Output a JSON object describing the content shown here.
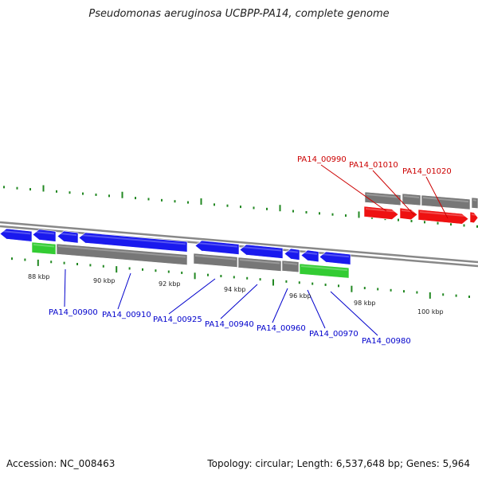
{
  "header": {
    "title": "Pseudomonas aeruginosa UCBPP-PA14, complete genome"
  },
  "footer": {
    "accession": "Accession: NC_008463",
    "summary": "Topology: circular; Length: 6,537,648 bp; Genes: 5,964"
  },
  "scale_labels": [
    "88 kbp",
    "90 kbp",
    "92 kbp",
    "94 kbp",
    "96 kbp",
    "98 kbp",
    "100 kbp"
  ],
  "colors": {
    "forward_cds": "#1a1aee",
    "reverse_cds": "#ee1111",
    "gray_gene": "#777777",
    "green_gene": "#33cc33",
    "tick": "#228822",
    "backbone": "#888888",
    "top_label": "#cc0000",
    "bottom_label": "#0000cc"
  },
  "gene_labels_top": [
    "PA14_00990",
    "PA14_01010",
    "PA14_01020"
  ],
  "gene_labels_bottom": [
    "PA14_00900",
    "PA14_00910",
    "PA14_00925",
    "PA14_00940",
    "PA14_00960",
    "PA14_00970",
    "PA14_00980"
  ]
}
